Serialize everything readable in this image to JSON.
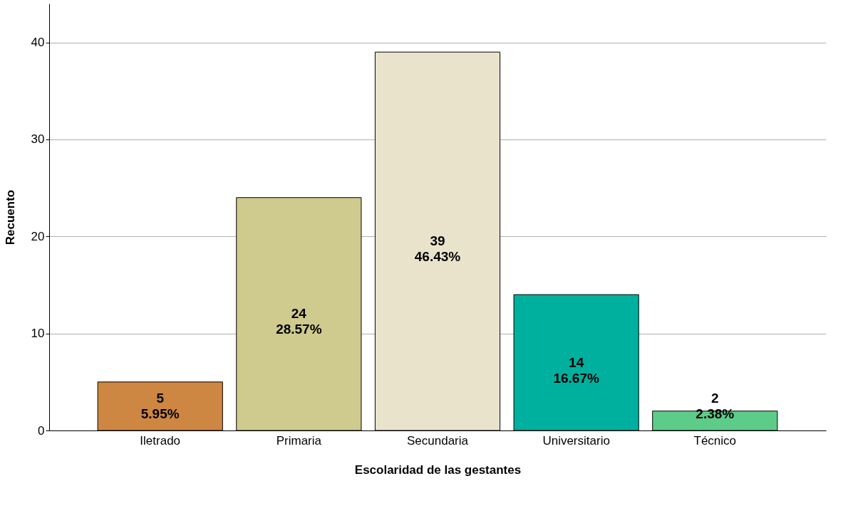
{
  "chart_data": {
    "type": "bar",
    "xlabel": "Escolaridad de las gestantes",
    "ylabel": "Recuento",
    "categories": [
      "Iletrado",
      "Primaria",
      "Secundaria",
      "Universitario",
      "Técnico"
    ],
    "values": [
      5,
      24,
      39,
      14,
      2
    ],
    "colors": [
      "#cd8742",
      "#cfca8e",
      "#e9e3cc",
      "#00b09e",
      "#5ccc88"
    ],
    "value_labels": [
      "5\n5.95%",
      "24\n28.57%",
      "39\n46.43%",
      "14\n16.67%",
      "2\n2.38%"
    ],
    "ylim": [
      0,
      44
    ],
    "yticks": [
      0,
      10,
      20,
      30,
      40
    ],
    "grid": "y"
  }
}
